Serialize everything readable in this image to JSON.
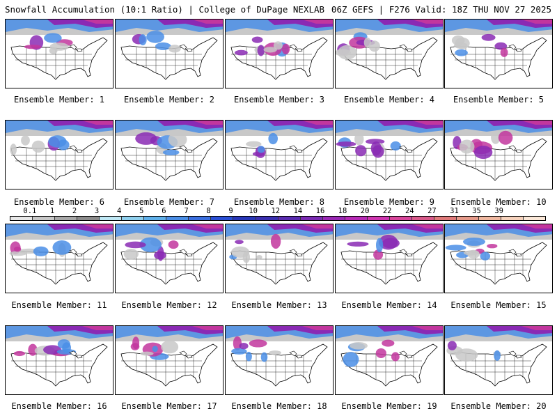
{
  "header": {
    "left": "Snowfall Accumulation (10:1 Ratio) | College of DuPage NEXLAB",
    "right": "06Z GEFS | F276 Valid: 18Z THU NOV 27 2025"
  },
  "members": [
    "Ensemble Member: 1",
    "Ensemble Member: 2",
    "Ensemble Member: 3",
    "Ensemble Member: 4",
    "Ensemble Member: 5",
    "Ensemble Member: 6",
    "Ensemble Member: 7",
    "Ensemble Member: 8",
    "Ensemble Member: 9",
    "Ensemble Member: 10",
    "Ensemble Member: 11",
    "Ensemble Member: 12",
    "Ensemble Member: 13",
    "Ensemble Member: 14",
    "Ensemble Member: 15",
    "Ensemble Member: 16",
    "Ensemble Member: 17",
    "Ensemble Member: 18",
    "Ensemble Member: 19",
    "Ensemble Member: 20"
  ],
  "colorbar": {
    "labels": [
      "0.1",
      "1",
      "2",
      "3",
      "4",
      "5",
      "6",
      "7",
      "8",
      "9",
      "10",
      "12",
      "14",
      "16",
      "18",
      "20",
      "22",
      "24",
      "27",
      "31",
      "35",
      "39"
    ],
    "colors": [
      "#e8e8e8",
      "#c8c8c8",
      "#a8a8a8",
      "#8c8c8c",
      "#bfe8f5",
      "#8fd0ee",
      "#5fb0ea",
      "#4a8ee6",
      "#3a6fe0",
      "#2a4fd6",
      "#2836b8",
      "#3a2fb0",
      "#5a2bb0",
      "#7a2ab2",
      "#9a28b4",
      "#b82ab6",
      "#cf35b0",
      "#d8459a",
      "#d85a8a",
      "#e07a7a",
      "#e69a8a",
      "#f0b8a0",
      "#f6d2bc",
      "#fbe8d8"
    ]
  },
  "map_colors": {
    "land": "#ffffff",
    "boundary": "#000000",
    "snow_light": "#c8c8c8",
    "snow_blue": "#4a8ee6",
    "snow_purple": "#8a2ab4",
    "snow_magenta": "#c2369e"
  }
}
